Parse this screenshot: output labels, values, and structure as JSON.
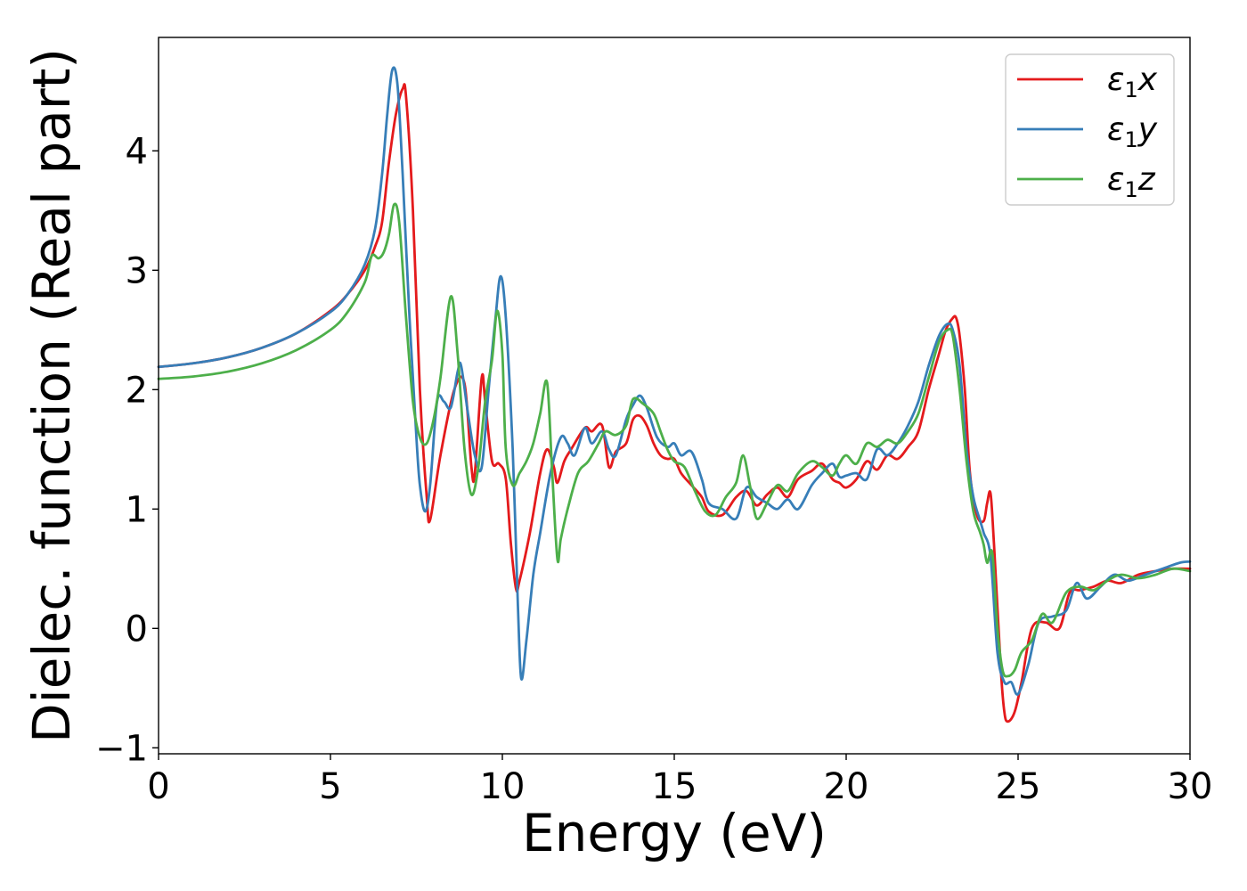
{
  "chart_data": {
    "type": "line",
    "title": "",
    "xlabel": "Energy (eV)",
    "ylabel": "Dielec. function (Real part)",
    "xlim": [
      0,
      30
    ],
    "ylim": [
      -1.05,
      4.95
    ],
    "xticks": [
      0,
      5,
      10,
      15,
      20,
      25,
      30
    ],
    "xtick_labels": [
      "0",
      "5",
      "10",
      "15",
      "20",
      "25",
      "30"
    ],
    "yticks": [
      -1,
      0,
      1,
      2,
      3,
      4
    ],
    "ytick_labels": [
      "−1",
      "0",
      "1",
      "2",
      "3",
      "4"
    ],
    "grid": false,
    "legend_position": "top-right",
    "series": [
      {
        "name": "ε₁x",
        "legend_main": "ε",
        "legend_sub": "1",
        "legend_tail": "x",
        "color": "#e41a1c",
        "x": [
          0,
          1,
          2,
          3,
          4,
          5,
          5.5,
          6.0,
          6.3,
          6.5,
          6.7,
          6.9,
          7.1,
          7.2,
          7.4,
          7.6,
          7.8,
          7.9,
          8.2,
          8.6,
          8.9,
          9.1,
          9.2,
          9.4,
          9.5,
          9.7,
          9.9,
          10.1,
          10.25,
          10.4,
          10.5,
          10.8,
          11.1,
          11.3,
          11.5,
          11.6,
          11.8,
          12.0,
          12.4,
          12.6,
          12.9,
          13.1,
          13.3,
          13.6,
          13.8,
          14.0,
          14.2,
          14.4,
          14.6,
          14.8,
          15.0,
          15.2,
          15.5,
          15.8,
          16.0,
          16.4,
          16.8,
          17.1,
          17.4,
          17.7,
          18.0,
          18.3,
          18.6,
          19.0,
          19.3,
          19.6,
          19.8,
          20.0,
          20.3,
          20.6,
          20.9,
          21.2,
          21.5,
          21.8,
          22.1,
          22.4,
          22.7,
          22.9,
          23.1,
          23.2,
          23.3,
          23.45,
          23.6,
          23.8,
          24.0,
          24.1,
          24.2,
          24.3,
          24.5,
          24.6,
          24.7,
          24.9,
          25.1,
          25.4,
          25.8,
          26.2,
          26.5,
          26.8,
          27.2,
          27.6,
          28.0,
          28.5,
          29.0,
          29.5,
          30.0
        ],
        "y": [
          2.19,
          2.22,
          2.27,
          2.35,
          2.47,
          2.66,
          2.8,
          3.0,
          3.2,
          3.4,
          3.9,
          4.3,
          4.52,
          4.45,
          3.5,
          2.0,
          1.1,
          0.91,
          1.45,
          2.0,
          2.05,
          1.35,
          1.3,
          2.1,
          1.9,
          1.4,
          1.38,
          1.25,
          0.7,
          0.33,
          0.4,
          0.8,
          1.3,
          1.5,
          1.35,
          1.22,
          1.4,
          1.5,
          1.68,
          1.65,
          1.7,
          1.35,
          1.48,
          1.55,
          1.75,
          1.78,
          1.7,
          1.55,
          1.45,
          1.42,
          1.42,
          1.3,
          1.2,
          1.1,
          0.98,
          0.95,
          1.1,
          1.15,
          1.03,
          1.12,
          1.18,
          1.1,
          1.25,
          1.32,
          1.38,
          1.25,
          1.22,
          1.18,
          1.25,
          1.4,
          1.33,
          1.45,
          1.42,
          1.52,
          1.65,
          2.0,
          2.3,
          2.5,
          2.6,
          2.6,
          2.45,
          2.0,
          1.3,
          0.95,
          0.9,
          1.05,
          1.13,
          0.7,
          -0.35,
          -0.7,
          -0.78,
          -0.7,
          -0.45,
          0.0,
          0.05,
          0.0,
          0.3,
          0.32,
          0.35,
          0.4,
          0.38,
          0.45,
          0.48,
          0.5,
          0.5
        ]
      },
      {
        "name": "ε₁y",
        "legend_main": "ε",
        "legend_sub": "1",
        "legend_tail": "y",
        "color": "#377eb8",
        "x": [
          0,
          1,
          2,
          3,
          4,
          5,
          5.5,
          6.0,
          6.3,
          6.5,
          6.65,
          6.8,
          6.95,
          7.1,
          7.3,
          7.5,
          7.6,
          7.75,
          7.9,
          8.1,
          8.3,
          8.5,
          8.7,
          8.8,
          9.0,
          9.2,
          9.4,
          9.6,
          9.8,
          9.95,
          10.1,
          10.3,
          10.45,
          10.55,
          10.7,
          10.9,
          11.1,
          11.4,
          11.7,
          11.9,
          12.1,
          12.4,
          12.6,
          12.9,
          13.1,
          13.3,
          13.6,
          13.8,
          14.0,
          14.2,
          14.5,
          14.8,
          15.0,
          15.2,
          15.5,
          15.8,
          16.0,
          16.4,
          16.8,
          17.1,
          17.4,
          17.7,
          18.0,
          18.3,
          18.6,
          19.0,
          19.3,
          19.6,
          19.8,
          20.0,
          20.3,
          20.6,
          20.9,
          21.2,
          21.5,
          21.8,
          22.1,
          22.4,
          22.7,
          22.95,
          23.1,
          23.3,
          23.5,
          23.7,
          23.9,
          24.0,
          24.2,
          24.4,
          24.6,
          24.8,
          25.0,
          25.3,
          25.6,
          26.0,
          26.4,
          26.7,
          27.0,
          27.4,
          27.8,
          28.2,
          28.7,
          29.2,
          29.7,
          30.0
        ],
        "y": [
          2.19,
          2.22,
          2.27,
          2.35,
          2.47,
          2.65,
          2.8,
          3.05,
          3.35,
          3.8,
          4.3,
          4.68,
          4.55,
          3.8,
          2.6,
          1.6,
          1.2,
          0.98,
          1.2,
          1.9,
          1.9,
          1.85,
          2.15,
          2.2,
          1.8,
          1.45,
          1.35,
          2.0,
          2.6,
          2.95,
          2.6,
          1.5,
          0.2,
          -0.42,
          -0.1,
          0.45,
          0.8,
          1.3,
          1.6,
          1.55,
          1.45,
          1.68,
          1.55,
          1.65,
          1.5,
          1.45,
          1.75,
          1.87,
          1.95,
          1.85,
          1.6,
          1.52,
          1.55,
          1.45,
          1.48,
          1.25,
          1.05,
          1.0,
          0.92,
          1.18,
          1.1,
          1.05,
          1.0,
          1.08,
          1.0,
          1.2,
          1.3,
          1.38,
          1.27,
          1.28,
          1.3,
          1.25,
          1.5,
          1.45,
          1.55,
          1.7,
          1.9,
          2.2,
          2.45,
          2.55,
          2.5,
          2.2,
          1.5,
          1.1,
          0.9,
          0.8,
          0.6,
          -0.2,
          -0.45,
          -0.45,
          -0.55,
          -0.3,
          0.05,
          0.1,
          0.15,
          0.38,
          0.25,
          0.35,
          0.45,
          0.4,
          0.45,
          0.5,
          0.55,
          0.56
        ]
      },
      {
        "name": "ε₁z",
        "legend_main": "ε",
        "legend_sub": "1",
        "legend_tail": "z",
        "color": "#4daf4a",
        "x": [
          0,
          1,
          2,
          3,
          4,
          5,
          5.5,
          6.0,
          6.2,
          6.4,
          6.55,
          6.7,
          6.85,
          7.0,
          7.2,
          7.4,
          7.6,
          7.8,
          8.0,
          8.2,
          8.5,
          8.7,
          8.9,
          9.1,
          9.3,
          9.5,
          9.7,
          9.85,
          10.0,
          10.1,
          10.3,
          10.5,
          10.7,
          10.9,
          11.1,
          11.3,
          11.45,
          11.6,
          11.7,
          11.9,
          12.2,
          12.5,
          12.8,
          13.0,
          13.3,
          13.6,
          13.8,
          14.1,
          14.4,
          14.6,
          14.8,
          15.0,
          15.3,
          15.6,
          15.9,
          16.2,
          16.5,
          16.8,
          17.0,
          17.2,
          17.4,
          17.7,
          18.0,
          18.3,
          18.6,
          19.0,
          19.3,
          19.6,
          19.8,
          20.0,
          20.3,
          20.6,
          20.9,
          21.2,
          21.5,
          21.8,
          22.1,
          22.4,
          22.7,
          22.95,
          23.1,
          23.3,
          23.5,
          23.7,
          23.9,
          24.0,
          24.1,
          24.25,
          24.4,
          24.55,
          24.7,
          24.9,
          25.1,
          25.4,
          25.7,
          26.0,
          26.4,
          26.8,
          27.2,
          27.6,
          28.0,
          28.5,
          29.0,
          29.5,
          30.0
        ],
        "y": [
          2.09,
          2.11,
          2.15,
          2.22,
          2.33,
          2.5,
          2.65,
          2.9,
          3.12,
          3.1,
          3.15,
          3.3,
          3.55,
          3.4,
          2.6,
          1.9,
          1.6,
          1.55,
          1.75,
          2.1,
          2.78,
          2.3,
          1.5,
          1.12,
          1.35,
          1.9,
          2.25,
          2.66,
          2.3,
          1.5,
          1.2,
          1.3,
          1.4,
          1.55,
          1.8,
          2.06,
          1.3,
          0.58,
          0.75,
          1.0,
          1.3,
          1.4,
          1.55,
          1.65,
          1.62,
          1.7,
          1.92,
          1.88,
          1.8,
          1.65,
          1.5,
          1.4,
          1.35,
          1.15,
          0.98,
          0.95,
          1.1,
          1.22,
          1.45,
          1.2,
          0.92,
          1.05,
          1.2,
          1.15,
          1.3,
          1.4,
          1.35,
          1.28,
          1.38,
          1.45,
          1.38,
          1.55,
          1.52,
          1.58,
          1.55,
          1.65,
          1.8,
          2.1,
          2.4,
          2.5,
          2.45,
          2.0,
          1.4,
          0.98,
          0.8,
          0.7,
          0.55,
          0.63,
          0.0,
          -0.35,
          -0.4,
          -0.35,
          -0.2,
          -0.1,
          0.12,
          0.05,
          0.3,
          0.35,
          0.32,
          0.4,
          0.45,
          0.42,
          0.45,
          0.5,
          0.48
        ]
      }
    ]
  }
}
